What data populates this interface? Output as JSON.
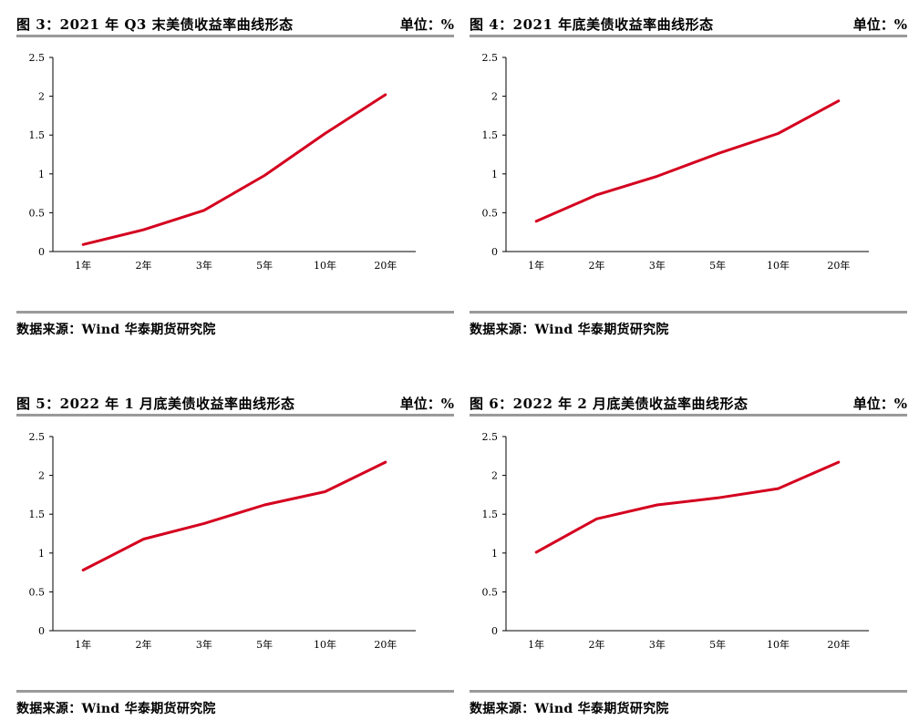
{
  "panels": [
    {
      "title": "图 3：2021 年 Q3 末美债收益率曲线形态",
      "unit": "单位：%",
      "source": "数据来源：Wind  华泰期货研究院"
    },
    {
      "title": "图 4：2021 年底美债收益率曲线形态",
      "unit": "单位：%",
      "source": "数据来源：Wind  华泰期货研究院"
    },
    {
      "title": "图 5：2022 年 1 月底美债收益率曲线形态",
      "unit": "单位：%",
      "source": "数据来源：Wind  华泰期货研究院"
    },
    {
      "title": "图 6：2022 年 2 月底美债收益率曲线形态",
      "unit": "单位：%",
      "source": "数据来源：Wind  华泰期货研究院"
    }
  ],
  "colors": {
    "line": "#d4001f",
    "rule": "#9a9a9a",
    "axis": "#000000"
  },
  "chart_data": [
    {
      "type": "line",
      "title": "图 3：2021 年 Q3 末美债收益率曲线形态",
      "categories": [
        "1年",
        "2年",
        "3年",
        "5年",
        "10年",
        "20年"
      ],
      "values": [
        0.09,
        0.28,
        0.53,
        0.98,
        1.52,
        2.02
      ],
      "ylim": [
        0,
        2.5
      ],
      "yticks": [
        "0",
        "0.5",
        "1",
        "1.5",
        "2",
        "2.5"
      ],
      "grid": false,
      "legend": "none"
    },
    {
      "type": "line",
      "title": "图 4：2021 年底美债收益率曲线形态",
      "categories": [
        "1年",
        "2年",
        "3年",
        "5年",
        "10年",
        "20年"
      ],
      "values": [
        0.39,
        0.73,
        0.97,
        1.26,
        1.52,
        1.94
      ],
      "ylim": [
        0,
        2.5
      ],
      "yticks": [
        "0",
        "0.5",
        "1",
        "1.5",
        "2",
        "2.5"
      ],
      "grid": false,
      "legend": "none"
    },
    {
      "type": "line",
      "title": "图 5：2022 年 1 月底美债收益率曲线形态",
      "categories": [
        "1年",
        "2年",
        "3年",
        "5年",
        "10年",
        "20年"
      ],
      "values": [
        0.78,
        1.18,
        1.38,
        1.62,
        1.79,
        2.17
      ],
      "ylim": [
        0,
        2.5
      ],
      "yticks": [
        "0",
        "0.5",
        "1",
        "1.5",
        "2",
        "2.5"
      ],
      "grid": false,
      "legend": "none"
    },
    {
      "type": "line",
      "title": "图 6：2022 年 2 月底美债收益率曲线形态",
      "categories": [
        "1年",
        "2年",
        "3年",
        "5年",
        "10年",
        "20年"
      ],
      "values": [
        1.01,
        1.44,
        1.62,
        1.71,
        1.83,
        2.17
      ],
      "ylim": [
        0,
        2.5
      ],
      "yticks": [
        "0",
        "0.5",
        "1",
        "1.5",
        "2",
        "2.5"
      ],
      "grid": false,
      "legend": "none"
    }
  ]
}
